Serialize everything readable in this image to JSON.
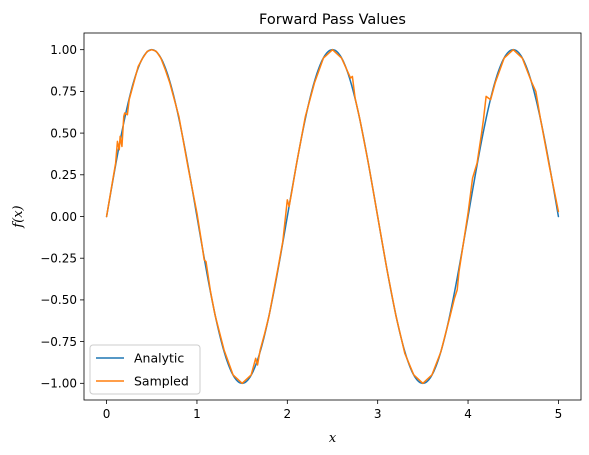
{
  "chart_data": {
    "type": "line",
    "title": "Forward Pass Values",
    "xlabel": "x",
    "ylabel": "f(x)",
    "xlim": [
      -0.25,
      5.25
    ],
    "ylim": [
      -1.1,
      1.1
    ],
    "xticks": [
      0,
      1,
      2,
      3,
      4,
      5
    ],
    "xtick_labels": [
      "0",
      "1",
      "2",
      "3",
      "4",
      "5"
    ],
    "yticks": [
      -1.0,
      -0.75,
      -0.5,
      -0.25,
      0.0,
      0.25,
      0.5,
      0.75,
      1.0
    ],
    "ytick_labels": [
      "−1.00",
      "−0.75",
      "−0.50",
      "−0.25",
      "0.00",
      "0.25",
      "0.50",
      "0.75",
      "1.00"
    ],
    "grid": false,
    "legend_position": "lower-left",
    "series": [
      {
        "name": "Analytic",
        "color": "#1f77b4",
        "function": "sin(pi*x)",
        "x_range": [
          0,
          5
        ]
      },
      {
        "name": "Sampled",
        "color": "#ff7f0e",
        "x": [
          0,
          0.05,
          0.1,
          0.12,
          0.14,
          0.15,
          0.17,
          0.19,
          0.2,
          0.23,
          0.25,
          0.3,
          0.35,
          0.4,
          0.45,
          0.5,
          0.55,
          0.6,
          0.65,
          0.7,
          0.75,
          0.8,
          0.9,
          1.0,
          1.05,
          1.08,
          1.1,
          1.15,
          1.2,
          1.3,
          1.4,
          1.5,
          1.6,
          1.65,
          1.67,
          1.7,
          1.75,
          1.8,
          1.9,
          1.95,
          2.0,
          2.02,
          2.05,
          2.1,
          2.2,
          2.3,
          2.4,
          2.5,
          2.6,
          2.7,
          2.72,
          2.75,
          2.8,
          2.9,
          3.0,
          3.1,
          3.2,
          3.3,
          3.4,
          3.5,
          3.6,
          3.7,
          3.8,
          3.85,
          3.88,
          3.9,
          4.0,
          4.05,
          4.1,
          4.15,
          4.17,
          4.2,
          4.25,
          4.3,
          4.4,
          4.5,
          4.6,
          4.7,
          4.75,
          4.8,
          4.9,
          5.0
        ],
        "y": [
          0.0,
          0.16,
          0.32,
          0.45,
          0.4,
          0.48,
          0.42,
          0.6,
          0.62,
          0.61,
          0.7,
          0.8,
          0.9,
          0.95,
          0.99,
          1.0,
          0.99,
          0.95,
          0.88,
          0.8,
          0.7,
          0.6,
          0.3,
          0.02,
          -0.15,
          -0.26,
          -0.27,
          -0.45,
          -0.59,
          -0.8,
          -0.95,
          -1.0,
          -0.95,
          -0.85,
          -0.89,
          -0.8,
          -0.7,
          -0.59,
          -0.3,
          -0.15,
          0.1,
          0.06,
          0.15,
          0.31,
          0.6,
          0.8,
          0.95,
          1.0,
          0.95,
          0.83,
          0.84,
          0.71,
          0.59,
          0.31,
          0.0,
          -0.31,
          -0.59,
          -0.82,
          -0.95,
          -1.0,
          -0.95,
          -0.81,
          -0.6,
          -0.49,
          -0.44,
          -0.33,
          0.02,
          0.23,
          0.32,
          0.5,
          0.58,
          0.72,
          0.7,
          0.8,
          0.95,
          1.0,
          0.95,
          0.81,
          0.75,
          0.59,
          0.3,
          0.03
        ]
      }
    ]
  }
}
